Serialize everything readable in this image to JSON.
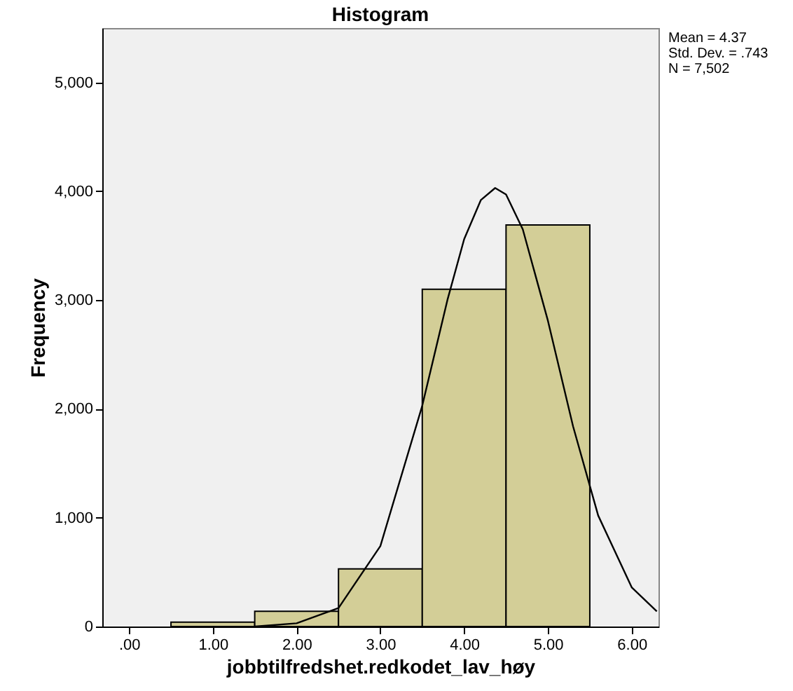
{
  "chart_data": {
    "type": "histogram",
    "title": "Histogram",
    "xlabel": "jobbtilfredshet.redkodet_lav_høy",
    "ylabel": "Frequency",
    "bins": [
      0.5,
      1.5,
      2.5,
      3.5,
      4.5,
      5.5
    ],
    "values": [
      40,
      140,
      530,
      3100,
      3690
    ],
    "color": "#d3ce97",
    "series": [
      {
        "type": "line",
        "color": "#000000",
        "x": [
          1.5,
          2.0,
          2.5,
          3.0,
          3.5,
          3.8,
          4.0,
          4.2,
          4.37,
          4.5,
          4.7,
          5.0,
          5.3,
          5.6,
          6.0,
          6.3
        ],
        "values": [
          0,
          30,
          170,
          740,
          2030,
          3000,
          3560,
          3920,
          4030,
          3970,
          3650,
          2810,
          1840,
          1020,
          360,
          140
        ]
      }
    ],
    "xlim": [
      -0.32,
      6.32
    ],
    "xticks": [
      {
        "value": 0,
        "label": ".00"
      },
      {
        "value": 1,
        "label": "1.00"
      },
      {
        "value": 2,
        "label": "2.00"
      },
      {
        "value": 3,
        "label": "3.00"
      },
      {
        "value": 4,
        "label": "4.00"
      },
      {
        "value": 5,
        "label": "5.00"
      },
      {
        "value": 6,
        "label": "6.00"
      }
    ],
    "ylim": [
      0,
      5500
    ],
    "yticks": [
      {
        "value": 0,
        "label": "0"
      },
      {
        "value": 1000,
        "label": "1,000"
      },
      {
        "value": 2000,
        "label": "2,000"
      },
      {
        "value": 3000,
        "label": "3,000"
      },
      {
        "value": 4000,
        "label": "4,000"
      },
      {
        "value": 5000,
        "label": "5,000"
      }
    ],
    "grid": false,
    "annotations": [
      "Mean = 4.37",
      "Std. Dev. = .743",
      "N = 7,502"
    ]
  }
}
